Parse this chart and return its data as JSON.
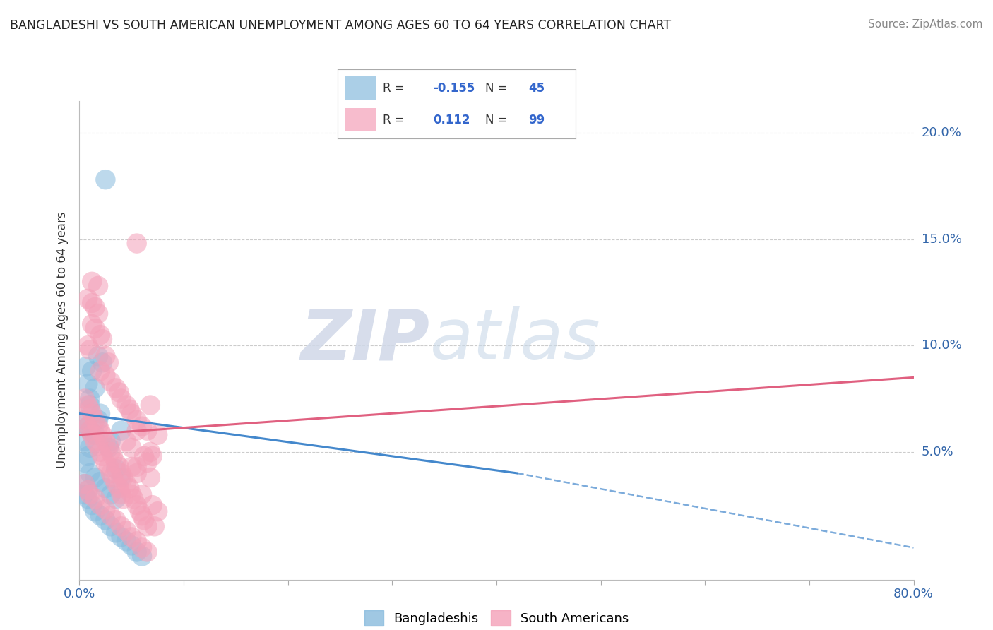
{
  "title": "BANGLADESHI VS SOUTH AMERICAN UNEMPLOYMENT AMONG AGES 60 TO 64 YEARS CORRELATION CHART",
  "source": "Source: ZipAtlas.com",
  "ylabel": "Unemployment Among Ages 60 to 64 years",
  "xlim": [
    0.0,
    0.8
  ],
  "ylim": [
    -0.01,
    0.215
  ],
  "yticks": [
    0.05,
    0.1,
    0.15,
    0.2
  ],
  "ytick_labels": [
    "5.0%",
    "10.0%",
    "15.0%",
    "20.0%"
  ],
  "grid_color": "#cccccc",
  "background_color": "#ffffff",
  "blue_color": "#88bbdd",
  "pink_color": "#f4a0b8",
  "blue_line_color": "#4488cc",
  "pink_line_color": "#e06080",
  "blue_line": [
    [
      0.0,
      0.068
    ],
    [
      0.42,
      0.04
    ]
  ],
  "blue_dashed_line": [
    [
      0.42,
      0.04
    ],
    [
      0.8,
      0.005
    ]
  ],
  "pink_line": [
    [
      0.0,
      0.058
    ],
    [
      0.8,
      0.085
    ]
  ],
  "bangladeshi_points": [
    [
      0.025,
      0.178
    ],
    [
      0.018,
      0.095
    ],
    [
      0.022,
      0.092
    ],
    [
      0.006,
      0.09
    ],
    [
      0.012,
      0.088
    ],
    [
      0.008,
      0.082
    ],
    [
      0.015,
      0.08
    ],
    [
      0.01,
      0.075
    ],
    [
      0.01,
      0.072
    ],
    [
      0.02,
      0.068
    ],
    [
      0.018,
      0.065
    ],
    [
      0.01,
      0.06
    ],
    [
      0.015,
      0.058
    ],
    [
      0.005,
      0.055
    ],
    [
      0.01,
      0.052
    ],
    [
      0.03,
      0.055
    ],
    [
      0.028,
      0.052
    ],
    [
      0.008,
      0.048
    ],
    [
      0.005,
      0.045
    ],
    [
      0.01,
      0.04
    ],
    [
      0.015,
      0.038
    ],
    [
      0.02,
      0.036
    ],
    [
      0.025,
      0.033
    ],
    [
      0.03,
      0.03
    ],
    [
      0.035,
      0.028
    ],
    [
      0.005,
      0.03
    ],
    [
      0.008,
      0.028
    ],
    [
      0.012,
      0.025
    ],
    [
      0.015,
      0.022
    ],
    [
      0.02,
      0.02
    ],
    [
      0.025,
      0.018
    ],
    [
      0.03,
      0.015
    ],
    [
      0.035,
      0.012
    ],
    [
      0.04,
      0.01
    ],
    [
      0.045,
      0.008
    ],
    [
      0.05,
      0.006
    ],
    [
      0.055,
      0.003
    ],
    [
      0.06,
      0.001
    ],
    [
      0.005,
      0.065
    ],
    [
      0.008,
      0.062
    ],
    [
      0.005,
      0.035
    ],
    [
      0.008,
      0.032
    ],
    [
      0.035,
      0.042
    ],
    [
      0.04,
      0.038
    ],
    [
      0.04,
      0.06
    ]
  ],
  "southamerican_points": [
    [
      0.055,
      0.148
    ],
    [
      0.012,
      0.13
    ],
    [
      0.018,
      0.128
    ],
    [
      0.008,
      0.122
    ],
    [
      0.012,
      0.12
    ],
    [
      0.015,
      0.118
    ],
    [
      0.018,
      0.115
    ],
    [
      0.012,
      0.11
    ],
    [
      0.015,
      0.108
    ],
    [
      0.02,
      0.105
    ],
    [
      0.022,
      0.103
    ],
    [
      0.008,
      0.1
    ],
    [
      0.01,
      0.098
    ],
    [
      0.025,
      0.095
    ],
    [
      0.028,
      0.092
    ],
    [
      0.02,
      0.088
    ],
    [
      0.025,
      0.086
    ],
    [
      0.03,
      0.083
    ],
    [
      0.035,
      0.08
    ],
    [
      0.038,
      0.078
    ],
    [
      0.04,
      0.075
    ],
    [
      0.045,
      0.072
    ],
    [
      0.048,
      0.07
    ],
    [
      0.05,
      0.068
    ],
    [
      0.055,
      0.065
    ],
    [
      0.06,
      0.062
    ],
    [
      0.065,
      0.06
    ],
    [
      0.068,
      0.072
    ],
    [
      0.005,
      0.075
    ],
    [
      0.008,
      0.072
    ],
    [
      0.01,
      0.07
    ],
    [
      0.012,
      0.068
    ],
    [
      0.015,
      0.065
    ],
    [
      0.018,
      0.062
    ],
    [
      0.02,
      0.06
    ],
    [
      0.022,
      0.058
    ],
    [
      0.025,
      0.055
    ],
    [
      0.028,
      0.053
    ],
    [
      0.03,
      0.05
    ],
    [
      0.032,
      0.048
    ],
    [
      0.035,
      0.045
    ],
    [
      0.038,
      0.043
    ],
    [
      0.04,
      0.04
    ],
    [
      0.042,
      0.038
    ],
    [
      0.045,
      0.035
    ],
    [
      0.048,
      0.033
    ],
    [
      0.05,
      0.03
    ],
    [
      0.052,
      0.028
    ],
    [
      0.055,
      0.025
    ],
    [
      0.058,
      0.022
    ],
    [
      0.06,
      0.02
    ],
    [
      0.062,
      0.018
    ],
    [
      0.065,
      0.015
    ],
    [
      0.005,
      0.065
    ],
    [
      0.008,
      0.062
    ],
    [
      0.01,
      0.06
    ],
    [
      0.012,
      0.058
    ],
    [
      0.015,
      0.055
    ],
    [
      0.018,
      0.053
    ],
    [
      0.02,
      0.05
    ],
    [
      0.022,
      0.048
    ],
    [
      0.025,
      0.045
    ],
    [
      0.028,
      0.043
    ],
    [
      0.03,
      0.04
    ],
    [
      0.032,
      0.038
    ],
    [
      0.035,
      0.035
    ],
    [
      0.038,
      0.033
    ],
    [
      0.04,
      0.03
    ],
    [
      0.042,
      0.028
    ],
    [
      0.005,
      0.035
    ],
    [
      0.008,
      0.032
    ],
    [
      0.01,
      0.03
    ],
    [
      0.015,
      0.028
    ],
    [
      0.02,
      0.025
    ],
    [
      0.025,
      0.023
    ],
    [
      0.03,
      0.02
    ],
    [
      0.035,
      0.018
    ],
    [
      0.04,
      0.015
    ],
    [
      0.045,
      0.013
    ],
    [
      0.05,
      0.01
    ],
    [
      0.055,
      0.008
    ],
    [
      0.06,
      0.005
    ],
    [
      0.065,
      0.003
    ],
    [
      0.055,
      0.043
    ],
    [
      0.065,
      0.045
    ],
    [
      0.062,
      0.048
    ],
    [
      0.045,
      0.055
    ],
    [
      0.05,
      0.052
    ],
    [
      0.068,
      0.038
    ],
    [
      0.06,
      0.03
    ],
    [
      0.07,
      0.025
    ],
    [
      0.075,
      0.022
    ],
    [
      0.072,
      0.015
    ],
    [
      0.07,
      0.048
    ],
    [
      0.075,
      0.058
    ],
    [
      0.055,
      0.04
    ],
    [
      0.068,
      0.05
    ],
    [
      0.05,
      0.043
    ],
    [
      0.055,
      0.06
    ]
  ],
  "watermark_zip": "ZIP",
  "watermark_atlas": "atlas",
  "legend_R1": "-0.155",
  "legend_N1": "45",
  "legend_R2": "0.112",
  "legend_N2": "99"
}
